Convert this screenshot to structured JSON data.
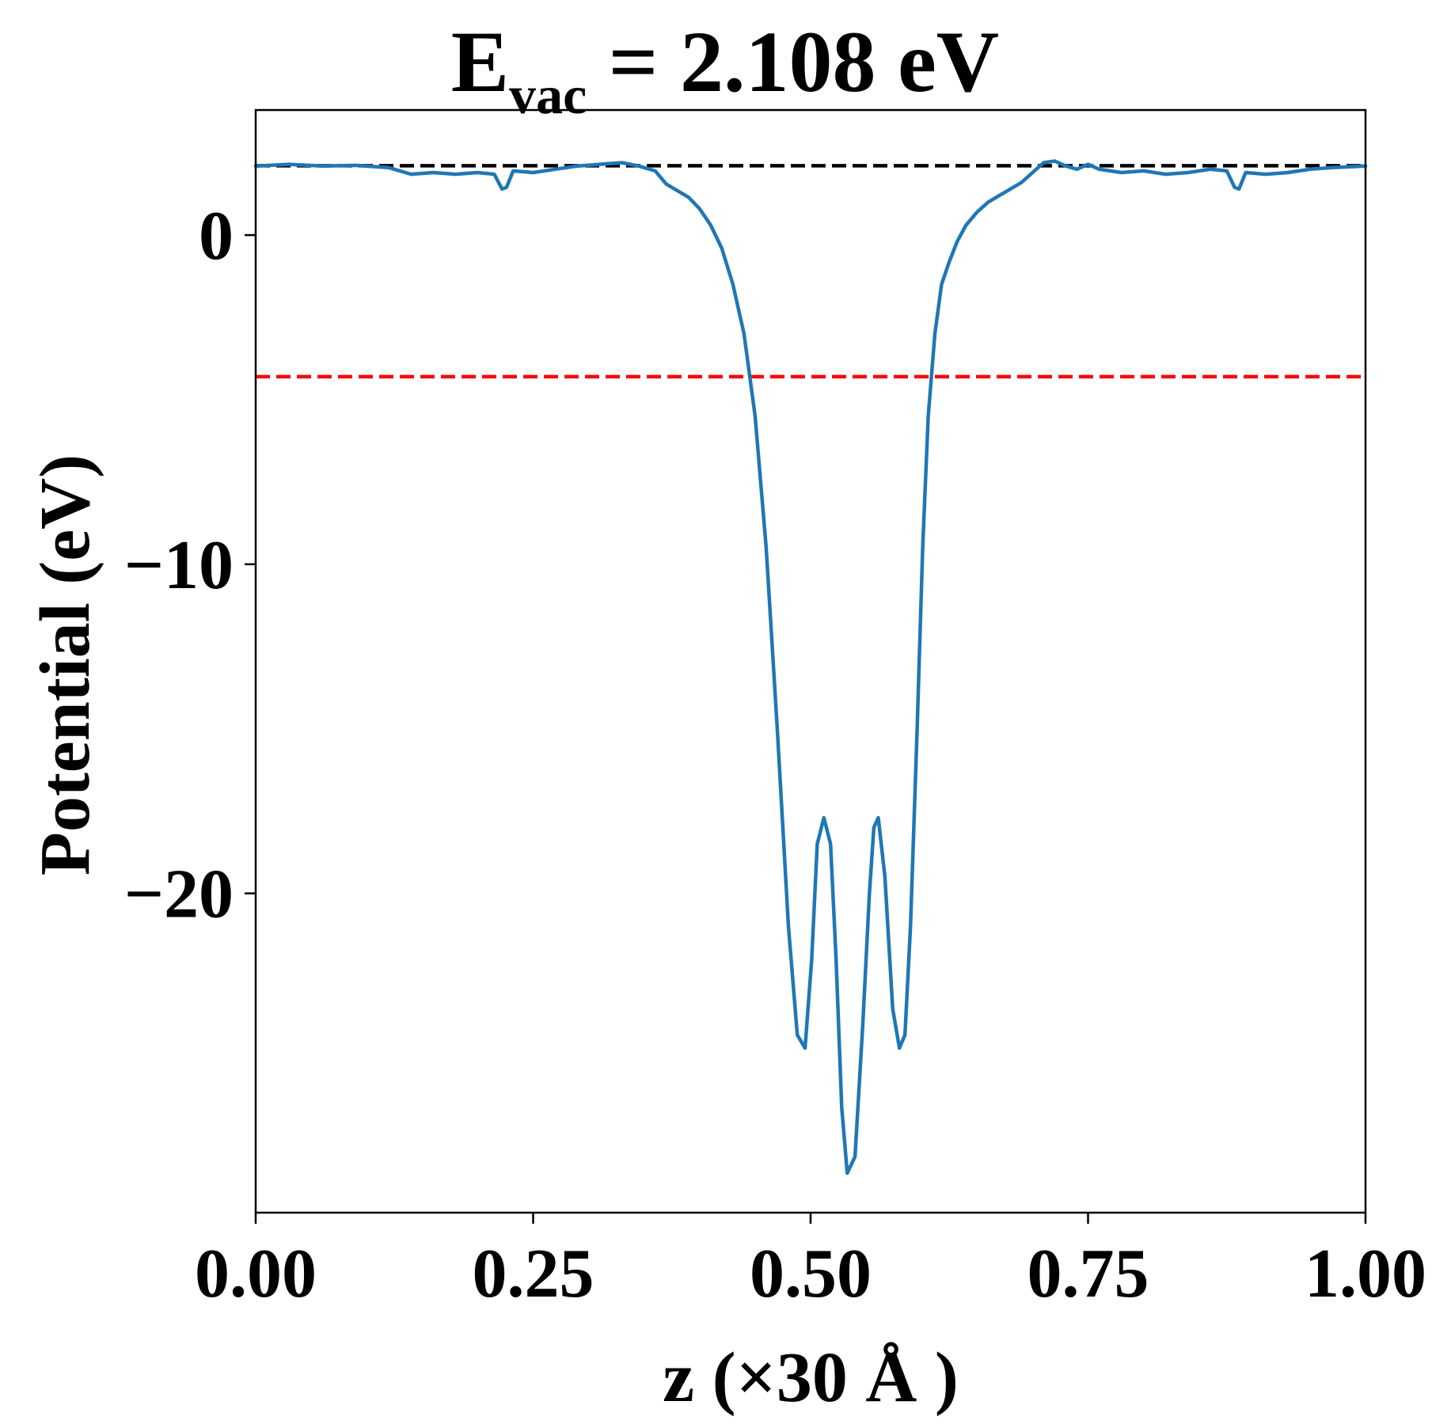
{
  "chart_data": {
    "type": "line",
    "title": {
      "main": "E",
      "subscript": "vac",
      "rest": " = 2.108 eV"
    },
    "xlabel": "z (×30 Å )",
    "ylabel": "Potential (eV)",
    "xlim": [
      0.0,
      1.0
    ],
    "ylim": [
      -29.7,
      3.8
    ],
    "x_ticks": [
      0.0,
      0.25,
      0.5,
      0.75,
      1.0
    ],
    "x_tick_labels": [
      "0.00",
      "0.25",
      "0.50",
      "0.75",
      "1.00"
    ],
    "y_ticks": [
      0,
      -10,
      -20
    ],
    "y_tick_labels": [
      "0",
      "−10",
      "−20"
    ],
    "grid": false,
    "legend": "none",
    "reference_lines": [
      {
        "y": 2.108,
        "color": "#000000",
        "style": "dashed"
      },
      {
        "y": -4.3,
        "color": "#ff0000",
        "style": "dashed"
      }
    ],
    "series": [
      {
        "color": "#1f77b4",
        "x": [
          0.0,
          0.03,
          0.06,
          0.09,
          0.12,
          0.14,
          0.16,
          0.18,
          0.2,
          0.215,
          0.222,
          0.226,
          0.232,
          0.25,
          0.27,
          0.29,
          0.31,
          0.33,
          0.345,
          0.36,
          0.37,
          0.38,
          0.39,
          0.4,
          0.41,
          0.42,
          0.43,
          0.44,
          0.45,
          0.46,
          0.47,
          0.48,
          0.488,
          0.495,
          0.501,
          0.506,
          0.512,
          0.518,
          0.523,
          0.528,
          0.533,
          0.54,
          0.547,
          0.553,
          0.557,
          0.561,
          0.567,
          0.574,
          0.58,
          0.585,
          0.59,
          0.596,
          0.601,
          0.606,
          0.612,
          0.618,
          0.625,
          0.632,
          0.64,
          0.65,
          0.66,
          0.67,
          0.68,
          0.69,
          0.7,
          0.71,
          0.72,
          0.73,
          0.74,
          0.75,
          0.76,
          0.78,
          0.8,
          0.82,
          0.84,
          0.86,
          0.875,
          0.882,
          0.886,
          0.892,
          0.91,
          0.93,
          0.95,
          0.97,
          1.0
        ],
        "y": [
          2.1,
          2.15,
          2.1,
          2.12,
          2.05,
          1.85,
          1.9,
          1.85,
          1.9,
          1.85,
          1.4,
          1.45,
          1.95,
          1.9,
          2.0,
          2.1,
          2.15,
          2.2,
          2.1,
          1.95,
          1.55,
          1.35,
          1.15,
          0.8,
          0.3,
          -0.4,
          -1.5,
          -3.0,
          -5.5,
          -9.5,
          -15.0,
          -21.0,
          -24.3,
          -24.7,
          -22.0,
          -18.5,
          -17.7,
          -18.5,
          -22.0,
          -26.5,
          -28.5,
          -28.0,
          -24.0,
          -20.0,
          -18.0,
          -17.7,
          -19.5,
          -23.5,
          -24.7,
          -24.3,
          -21.0,
          -15.0,
          -9.5,
          -5.5,
          -3.0,
          -1.5,
          -0.8,
          -0.2,
          0.3,
          0.7,
          1.0,
          1.2,
          1.4,
          1.6,
          1.9,
          2.2,
          2.25,
          2.1,
          2.0,
          2.15,
          2.0,
          1.9,
          1.95,
          1.85,
          1.9,
          2.0,
          1.95,
          1.45,
          1.4,
          1.9,
          1.85,
          1.9,
          2.0,
          2.05,
          2.1
        ]
      }
    ]
  }
}
